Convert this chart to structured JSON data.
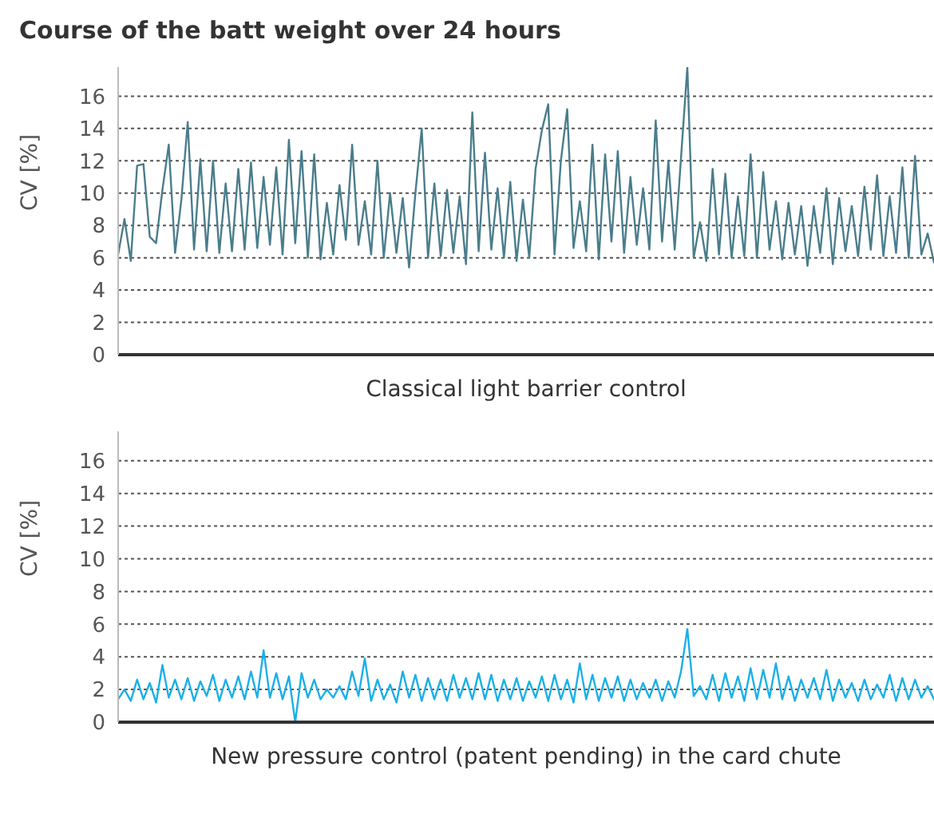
{
  "chart_data": [
    {
      "type": "line",
      "title": "Course of the batt weight over 24 hours",
      "xlabel": "Classical light barrier control",
      "ylabel": "CV [%]",
      "categories": [
        null,
        null,
        null,
        null,
        null,
        null,
        null,
        null,
        null,
        null,
        null,
        null,
        null,
        null,
        null,
        null,
        null,
        null,
        null,
        null,
        null,
        null,
        null,
        null,
        null,
        null,
        null,
        null,
        null,
        null,
        null,
        null,
        null,
        null,
        null,
        null,
        null,
        null,
        null,
        null,
        null,
        null,
        null,
        null,
        null,
        null,
        null,
        null,
        null,
        null,
        null,
        null,
        null,
        null,
        null,
        null,
        null,
        null,
        null,
        null,
        null,
        null,
        null,
        null,
        null,
        null,
        null,
        null,
        null,
        null,
        null,
        null,
        null,
        null,
        null,
        null,
        null,
        null,
        null,
        null,
        null,
        null,
        null,
        null,
        null,
        null,
        null,
        null,
        null,
        null,
        null,
        null,
        null,
        null,
        null,
        null,
        null,
        null,
        null,
        null,
        null,
        null,
        null,
        null,
        null,
        null,
        null,
        null,
        null,
        null,
        null,
        null,
        null,
        null,
        null,
        null,
        null,
        null,
        null,
        null,
        null,
        null,
        null,
        null,
        null,
        null,
        null,
        null,
        null,
        null
      ],
      "series": [
        {
          "color": "#4a7d8c",
          "values": [
            6.2,
            8.4,
            5.8,
            11.7,
            11.8,
            7.3,
            6.9,
            10.2,
            13,
            6.3,
            9.6,
            14.4,
            6.5,
            12.1,
            6.4,
            12,
            6.3,
            10.6,
            6.4,
            11.5,
            6.5,
            11.9,
            6.6,
            11,
            6.8,
            11.6,
            6.2,
            13.3,
            6.9,
            12.6,
            6,
            12.4,
            5.9,
            9.4,
            6.2,
            10.5,
            7.1,
            13,
            6.8,
            9.5,
            6.2,
            12,
            6,
            10,
            6.3,
            9.7,
            5.4,
            10,
            14,
            6,
            10.6,
            6.1,
            10.2,
            6.3,
            9.8,
            5.6,
            15,
            6.4,
            12.5,
            6.5,
            10.3,
            6,
            10.7,
            5.8,
            9.6,
            6,
            11.5,
            13.9,
            15.5,
            6.2,
            12,
            15.2,
            6.6,
            9.5,
            6.4,
            13,
            5.9,
            12.4,
            7,
            12.6,
            6.3,
            11,
            6.8,
            10.3,
            6.5,
            14.5,
            7,
            12,
            6.5,
            12.2,
            17.8,
            6,
            8.2,
            5.8,
            11.5,
            6.2,
            11.2,
            6,
            9.8,
            6.1,
            12.4,
            6,
            11.3,
            6.5,
            9.5,
            5.9,
            9.4,
            6.2,
            9.2,
            5.5,
            9.2,
            6.3,
            10.3,
            5.6,
            9.7,
            6.4,
            9.2,
            6.1,
            10.4,
            6.5,
            11.1,
            6.1,
            9.8,
            6.3,
            11.6,
            6,
            12.3,
            6.2,
            7.5,
            5.7
          ]
        }
      ],
      "ylim": [
        0,
        17.8
      ],
      "yticks": [
        0,
        2,
        4,
        6,
        8,
        10,
        12,
        14,
        16
      ],
      "grid": "y"
    },
    {
      "type": "line",
      "xlabel": "New pressure control (patent pending) in the card chute",
      "ylabel": "CV [%]",
      "categories": [
        null,
        null,
        null,
        null,
        null,
        null,
        null,
        null,
        null,
        null,
        null,
        null,
        null,
        null,
        null,
        null,
        null,
        null,
        null,
        null,
        null,
        null,
        null,
        null,
        null,
        null,
        null,
        null,
        null,
        null,
        null,
        null,
        null,
        null,
        null,
        null,
        null,
        null,
        null,
        null,
        null,
        null,
        null,
        null,
        null,
        null,
        null,
        null,
        null,
        null,
        null,
        null,
        null,
        null,
        null,
        null,
        null,
        null,
        null,
        null,
        null,
        null,
        null,
        null,
        null,
        null,
        null,
        null,
        null,
        null,
        null,
        null,
        null,
        null,
        null,
        null,
        null,
        null,
        null,
        null,
        null,
        null,
        null,
        null,
        null,
        null,
        null,
        null,
        null,
        null,
        null,
        null,
        null,
        null,
        null,
        null,
        null,
        null,
        null,
        null,
        null,
        null,
        null,
        null,
        null,
        null,
        null,
        null,
        null,
        null,
        null,
        null,
        null,
        null,
        null,
        null,
        null,
        null,
        null,
        null,
        null,
        null,
        null,
        null,
        null,
        null,
        null,
        null,
        null,
        null
      ],
      "series": [
        {
          "color": "#1ab0e8",
          "values": [
            1.4,
            2,
            1.3,
            2.6,
            1.4,
            2.4,
            1.2,
            3.5,
            1.5,
            2.6,
            1.4,
            2.7,
            1.3,
            2.5,
            1.6,
            2.9,
            1.3,
            2.6,
            1.5,
            2.8,
            1.4,
            3.1,
            1.5,
            4.4,
            1.5,
            3,
            1.4,
            2.8,
            0,
            3,
            1.5,
            2.6,
            1.4,
            2,
            1.5,
            2.2,
            1.4,
            3.1,
            1.6,
            3.9,
            1.3,
            2.6,
            1.4,
            2.3,
            1.2,
            3.1,
            1.5,
            2.9,
            1.3,
            2.7,
            1.4,
            2.6,
            1.3,
            2.9,
            1.5,
            2.7,
            1.4,
            3,
            1.4,
            2.9,
            1.3,
            2.6,
            1.4,
            2.7,
            1.3,
            2.5,
            1.5,
            2.8,
            1.3,
            2.9,
            1.4,
            2.6,
            1.2,
            3.6,
            1.4,
            2.9,
            1.3,
            2.7,
            1.5,
            2.8,
            1.3,
            2.6,
            1.4,
            2.4,
            1.5,
            2.6,
            1.3,
            2.5,
            1.5,
            3.1,
            5.7,
            1.6,
            2.2,
            1.4,
            2.9,
            1.3,
            3,
            1.5,
            2.8,
            1.3,
            3.3,
            1.4,
            3.2,
            1.5,
            3.6,
            1.4,
            2.8,
            1.3,
            2.6,
            1.5,
            2.7,
            1.4,
            3.2,
            1.3,
            2.6,
            1.5,
            2.4,
            1.3,
            2.6,
            1.4,
            2.3,
            1.5,
            2.9,
            1.3,
            2.7,
            1.4,
            2.6,
            1.5,
            2.2,
            1.4
          ]
        }
      ],
      "ylim": [
        0,
        17.8
      ],
      "yticks": [
        0,
        2,
        4,
        6,
        8,
        10,
        12,
        14,
        16
      ],
      "grid": "y"
    }
  ]
}
